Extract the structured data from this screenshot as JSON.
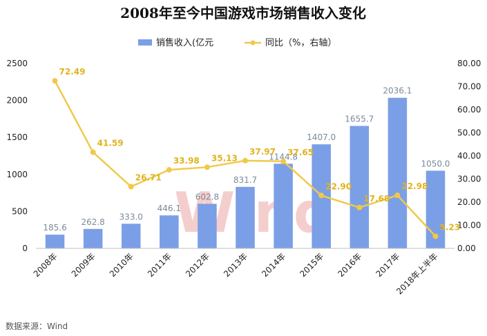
{
  "chart_data": {
    "type": "bar",
    "title": "2008年至今中国游戏市场销售收入变化",
    "categories": [
      "2008年",
      "2009年",
      "2010年",
      "2011年",
      "2012年",
      "2013年",
      "2014年",
      "2015年",
      "2016年",
      "2017年",
      "2018年上半年"
    ],
    "series": [
      {
        "name": "销售收入(亿元",
        "type": "bar",
        "axis": "left",
        "color": "#7b9fe6",
        "values": [
          185.6,
          262.8,
          333.0,
          446.1,
          602.8,
          831.7,
          1144.8,
          1407.0,
          1655.7,
          2036.1,
          1050.0
        ],
        "labels": [
          "185.6",
          "262.8",
          "333.0",
          "446.1",
          "602.8",
          "831.7",
          "1144.8",
          "1407.0",
          "1655.7",
          "2036.1",
          "1050.0"
        ]
      },
      {
        "name": "同比（%，右轴）",
        "type": "line",
        "axis": "right",
        "color": "#f0c94a",
        "values": [
          72.49,
          41.59,
          26.71,
          33.98,
          35.13,
          37.97,
          37.65,
          22.9,
          17.68,
          22.98,
          5.23
        ],
        "labels": [
          "72.49",
          "41.59",
          "26.71",
          "33.98",
          "35.13",
          "37.97",
          "37.65",
          "22.90",
          "17.68",
          "22.98",
          "5.23"
        ]
      }
    ],
    "y_left": {
      "min": 0,
      "max": 2500,
      "ticks": [
        "0",
        "500",
        "1000",
        "1500",
        "2000",
        "2500"
      ]
    },
    "y_right": {
      "min": 0,
      "max": 80,
      "ticks": [
        "0.00",
        "10.00",
        "20.00",
        "30.00",
        "40.00",
        "50.00",
        "60.00",
        "70.00",
        "80.00"
      ]
    },
    "legend_position": "top",
    "grid": false,
    "watermark": "Wind",
    "source": "数据来源：Wind"
  }
}
